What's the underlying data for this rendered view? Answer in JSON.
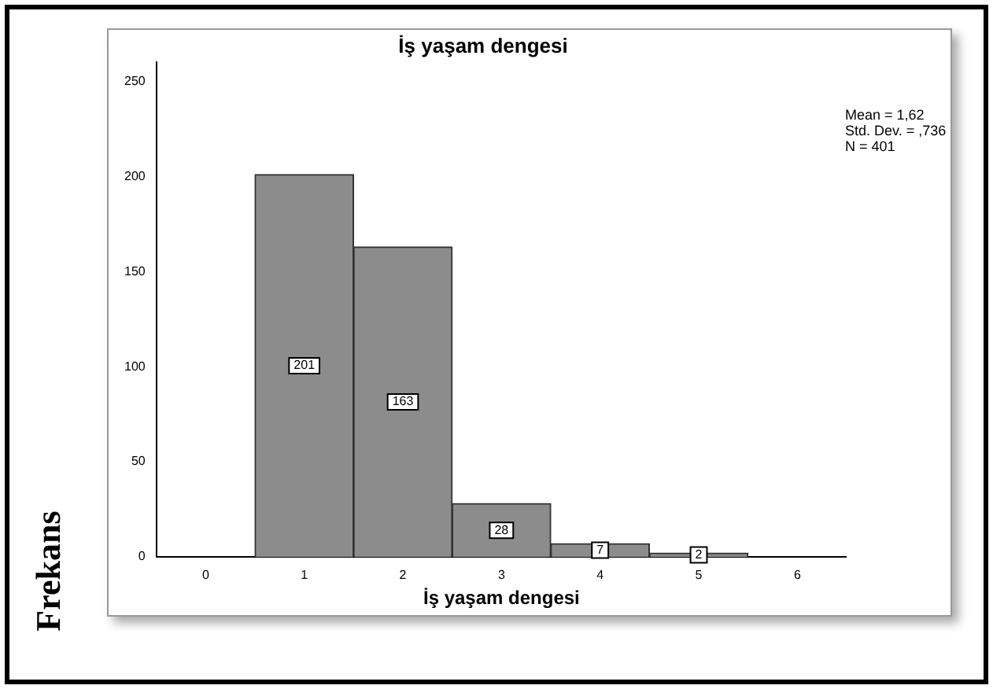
{
  "chart_data": {
    "type": "histogram",
    "title": "İş yaşam dengesi",
    "xlabel": "İş yaşam dengesi",
    "ylabel": "Frekans",
    "bins": [
      0.5,
      1.5,
      2.5,
      3.5,
      4.5,
      5.5
    ],
    "values": [
      201,
      163,
      28,
      7,
      2
    ],
    "color": "#8c8c8c",
    "xlim": [
      -0.5,
      6.5
    ],
    "xticks": [
      0,
      1,
      2,
      3,
      4,
      5,
      6
    ],
    "ylim": [
      0,
      260
    ],
    "yticks": [
      0,
      50,
      100,
      150,
      200,
      250
    ],
    "data_labels": true,
    "grid": false,
    "legend": false,
    "annotations": [
      "Mean = 1,62",
      "Std. Dev. = ,736",
      "N = 401"
    ]
  }
}
